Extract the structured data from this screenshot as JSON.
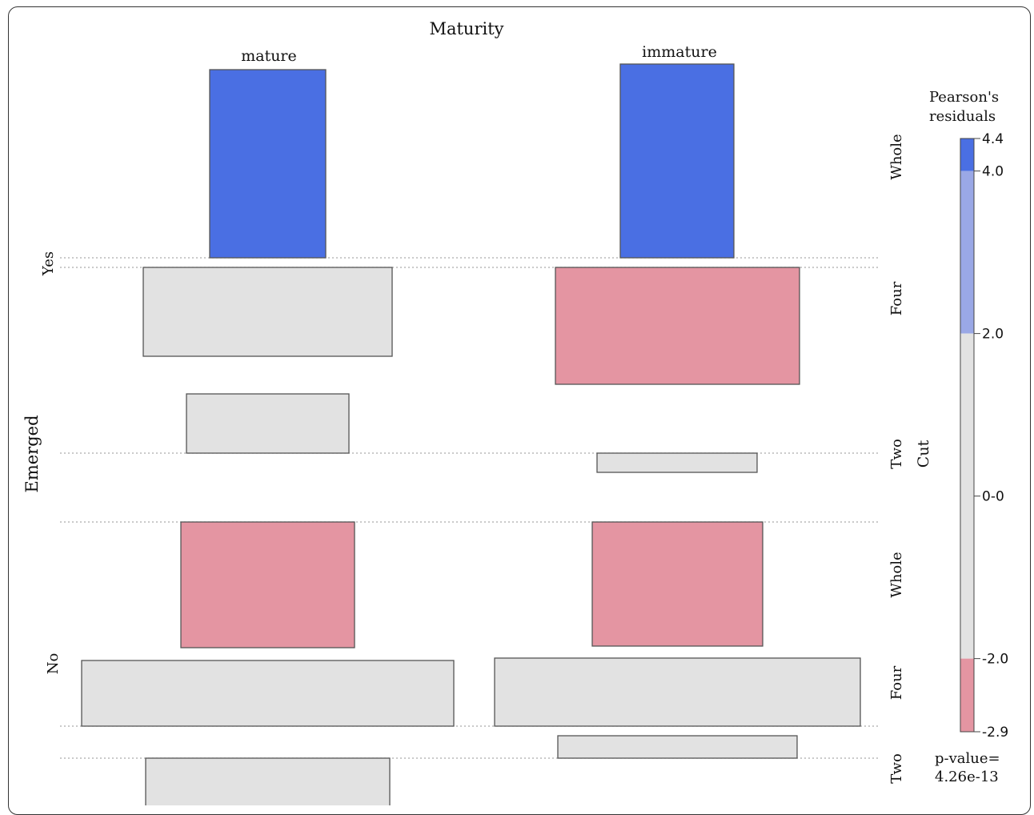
{
  "chart_data": {
    "type": "mosaic",
    "title": "Maturity",
    "column_variable": "Maturity",
    "columns": [
      "mature",
      "immature"
    ],
    "outer_row_variable": "Emerged",
    "outer_rows": [
      "Yes",
      "No"
    ],
    "inner_row_variable": "Cut",
    "inner_rows": [
      "Whole",
      "Four",
      "Two"
    ],
    "cells": [
      {
        "emerged": "Yes",
        "cut": "Whole",
        "maturity": "mature",
        "shading": "positive-strong"
      },
      {
        "emerged": "Yes",
        "cut": "Whole",
        "maturity": "immature",
        "shading": "positive-strong"
      },
      {
        "emerged": "Yes",
        "cut": "Four",
        "maturity": "mature",
        "shading": "neutral"
      },
      {
        "emerged": "Yes",
        "cut": "Four",
        "maturity": "immature",
        "shading": "negative"
      },
      {
        "emerged": "Yes",
        "cut": "Two",
        "maturity": "mature",
        "shading": "neutral"
      },
      {
        "emerged": "Yes",
        "cut": "Two",
        "maturity": "immature",
        "shading": "neutral"
      },
      {
        "emerged": "No",
        "cut": "Whole",
        "maturity": "mature",
        "shading": "negative"
      },
      {
        "emerged": "No",
        "cut": "Whole",
        "maturity": "immature",
        "shading": "negative"
      },
      {
        "emerged": "No",
        "cut": "Four",
        "maturity": "mature",
        "shading": "neutral"
      },
      {
        "emerged": "No",
        "cut": "Four",
        "maturity": "immature",
        "shading": "neutral"
      },
      {
        "emerged": "No",
        "cut": "Two",
        "maturity": "mature",
        "shading": "neutral"
      },
      {
        "emerged": "No",
        "cut": "Two",
        "maturity": "immature",
        "shading": "neutral"
      }
    ],
    "legend": {
      "title_line1": "Pearson's",
      "title_line2": "residuals",
      "ticks": [
        "4.4",
        "4.0",
        "2.0",
        "0-0",
        "-2.0",
        "-2.9"
      ],
      "range": [
        -2.9,
        4.4
      ],
      "bands": [
        {
          "from": 4.0,
          "to": 4.4,
          "shading": "positive-strong"
        },
        {
          "from": 2.0,
          "to": 4.0,
          "shading": "positive"
        },
        {
          "from": -2.0,
          "to": 2.0,
          "shading": "neutral"
        },
        {
          "from": -2.9,
          "to": -2.0,
          "shading": "negative"
        }
      ]
    },
    "p_value_label": "p-value=",
    "p_value": "4.26e-13",
    "colors": {
      "positive-strong": "#4a6fe3",
      "positive": "#9aa8e6",
      "neutral": "#e2e2e2",
      "negative": "#e495a2",
      "border": "#555555",
      "separator": "#aaaaaa"
    }
  }
}
